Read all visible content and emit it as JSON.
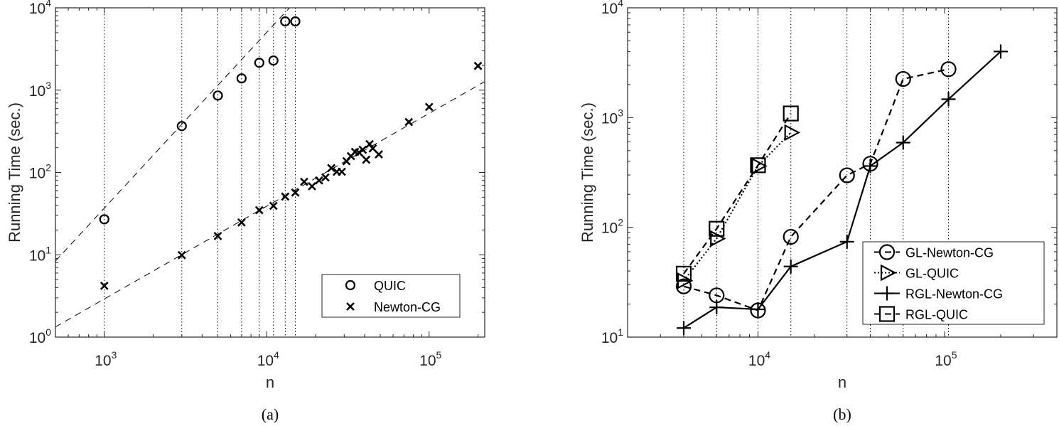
{
  "chart_data": [
    {
      "id": "a",
      "caption": "(a)",
      "type": "scatter",
      "title": "",
      "xlabel": "n",
      "ylabel": "Running Time (sec.)",
      "xscale": "log",
      "yscale": "log",
      "xlim": [
        500,
        220000
      ],
      "ylim": [
        1,
        10000
      ],
      "xticks": [
        1000,
        10000,
        100000
      ],
      "xtick_labels": [
        "10^3",
        "10^4",
        "10^5"
      ],
      "yticks": [
        1,
        10,
        100,
        1000,
        10000
      ],
      "ytick_labels": [
        "10^0",
        "10^1",
        "10^2",
        "10^3",
        "10^4"
      ],
      "grid": "vertical dotted lines at n = 1000, 3000, 5000, 7000, 9000, 11000, 13000, 15000",
      "vlines": [
        1000,
        3000,
        5000,
        7000,
        9000,
        11000,
        13000,
        15000
      ],
      "legend": {
        "position": "lower right",
        "entries": [
          "QUIC",
          "Newton-CG"
        ]
      },
      "series": [
        {
          "name": "QUIC",
          "marker": "circle",
          "x": [
            1000,
            3000,
            5000,
            7000,
            9000,
            11000,
            13000,
            15000
          ],
          "y": [
            27,
            366,
            860,
            1390,
            2150,
            2290,
            6840,
            6840
          ],
          "fit_line": {
            "style": "dashed",
            "x": [
              500,
              13800
            ],
            "y": [
              8.4,
              10000
            ]
          }
        },
        {
          "name": "Newton-CG",
          "marker": "x",
          "x": [
            1000,
            3000,
            5000,
            7000,
            9000,
            11000,
            13000,
            15000,
            17000,
            19000,
            21000,
            23000,
            25000,
            27000,
            29000,
            31000,
            33000,
            35000,
            37000,
            39000,
            41000,
            43000,
            45000,
            49000,
            75000,
            100000,
            200000
          ],
          "y": [
            4.2,
            9.9,
            16.9,
            24.7,
            34.8,
            39.3,
            50.9,
            57,
            77,
            68,
            80,
            87,
            113,
            102,
            102,
            137,
            158,
            178,
            175,
            189,
            143,
            221,
            196,
            166,
            410,
            625,
            1970
          ],
          "fit_line": {
            "style": "dashed",
            "x": [
              500,
              220000
            ],
            "y": [
              1.33,
              1270
            ]
          }
        }
      ]
    },
    {
      "id": "b",
      "caption": "(b)",
      "type": "line",
      "title": "",
      "xlabel": "n",
      "ylabel": "Running Time (sec.)",
      "xscale": "log",
      "yscale": "log",
      "xlim": [
        2000,
        400000
      ],
      "ylim": [
        10,
        10000
      ],
      "xticks": [
        10000,
        100000
      ],
      "xtick_labels": [
        "10^4",
        "10^5"
      ],
      "yticks": [
        10,
        100,
        1000,
        10000
      ],
      "ytick_labels": [
        "10^1",
        "10^2",
        "10^3",
        "10^4"
      ],
      "grid": "vertical dotted lines at n = 4000, 6000, 10000, 15000, 30000, 40000, 60000, 105000",
      "vlines": [
        4000,
        6000,
        10000,
        15000,
        30000,
        40000,
        60000,
        105000
      ],
      "legend": {
        "position": "lower right",
        "entries": [
          "GL-Newton-CG",
          "GL-QUIC",
          "RGL-Newton-CG",
          "RGL-QUIC"
        ]
      },
      "series": [
        {
          "name": "GL-Newton-CG",
          "marker": "circle",
          "line": "dashed",
          "x": [
            4000,
            6000,
            10000,
            15000,
            30000,
            40000,
            60000,
            105000
          ],
          "y": [
            29,
            24,
            17.5,
            82,
            298,
            380,
            2250,
            2760
          ]
        },
        {
          "name": "GL-QUIC",
          "marker": "triangle-right",
          "line": "dotted",
          "x": [
            4000,
            6000,
            10000,
            15000
          ],
          "y": [
            32.6,
            79,
            362,
            730
          ]
        },
        {
          "name": "RGL-Newton-CG",
          "marker": "plus",
          "line": "solid",
          "x": [
            4000,
            6000,
            10000,
            15000,
            30000,
            40000,
            60000,
            105000,
            200000
          ],
          "y": [
            12.1,
            18.7,
            17.9,
            44,
            74,
            362,
            592,
            1470,
            4000
          ]
        },
        {
          "name": "RGL-QUIC",
          "marker": "square",
          "line": "dashed",
          "x": [
            4000,
            6000,
            10000,
            15000
          ],
          "y": [
            37.8,
            97,
            368,
            1090
          ]
        }
      ]
    }
  ],
  "figure": {
    "panel_a": {
      "caption": "(a)",
      "xlabel": "n",
      "ylabel": "Running Time (sec.)"
    },
    "panel_b": {
      "caption": "(b)",
      "xlabel": "n",
      "ylabel": "Running Time (sec.)"
    }
  }
}
